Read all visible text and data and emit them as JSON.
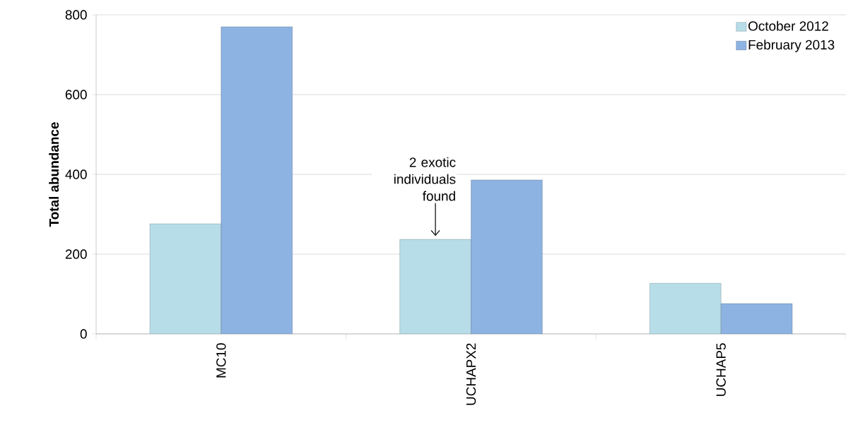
{
  "chart_data": {
    "type": "bar",
    "ylabel": "Total abundance",
    "categories": [
      "MC10",
      "UCHAPX2",
      "UCHAP5"
    ],
    "series": [
      {
        "name": "October 2012",
        "color": "#b7dde8",
        "values": [
          276,
          237,
          127
        ]
      },
      {
        "name": "February 2013",
        "color": "#8db3e2",
        "values": [
          770,
          386,
          76
        ]
      }
    ],
    "ylim": [
      0,
      800
    ],
    "yticks": [
      0,
      200,
      400,
      600,
      800
    ],
    "grid": "y",
    "legend": "top right",
    "annotations": [
      "2 exotic individuals found"
    ]
  }
}
